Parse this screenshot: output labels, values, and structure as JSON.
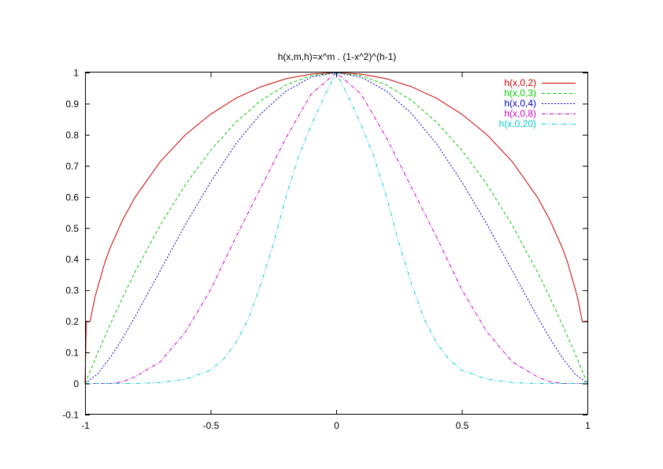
{
  "chart_data": {
    "type": "line",
    "title": "h(x,m,h)=x^m . (1-x^2)^(h-1)",
    "xlabel": "",
    "ylabel": "",
    "xlim": [
      -1,
      1
    ],
    "ylim": [
      -0.1,
      1
    ],
    "xticks": [
      -1,
      -0.5,
      0,
      0.5,
      1
    ],
    "xtick_labels": [
      "-1",
      "-0.5",
      "0",
      "0.5",
      "1"
    ],
    "yticks": [
      -0.1,
      0,
      0.1,
      0.2,
      0.3,
      0.4,
      0.5,
      0.6,
      0.7,
      0.8,
      0.9,
      1
    ],
    "ytick_labels": [
      "-0.1",
      "0",
      "0.1",
      "0.2",
      "0.3",
      "0.4",
      "0.5",
      "0.6",
      "0.7",
      "0.8",
      "0.9",
      "1"
    ],
    "grid": false,
    "legend_position": "top-right",
    "series": [
      {
        "name": "h(x,0,2)",
        "color": "#cc0000",
        "dash": "solid",
        "x": [
          -1,
          -0.995,
          -0.98,
          -0.96,
          -0.92,
          -0.9,
          -0.85,
          -0.8,
          -0.7,
          -0.6,
          -0.5,
          -0.4,
          -0.3,
          -0.2,
          -0.1,
          0,
          0.1,
          0.2,
          0.3,
          0.4,
          0.5,
          0.6,
          0.7,
          0.8,
          0.85,
          0.9,
          0.92,
          0.96,
          0.98,
          0.995,
          1
        ],
        "y": [
          0,
          0.2,
          0.199,
          0.28,
          0.392,
          0.436,
          0.527,
          0.6,
          0.714,
          0.8,
          0.866,
          0.917,
          0.954,
          0.98,
          0.995,
          1,
          0.995,
          0.98,
          0.954,
          0.917,
          0.866,
          0.8,
          0.714,
          0.6,
          0.527,
          0.436,
          0.392,
          0.28,
          0.199,
          0.2,
          0.2
        ]
      },
      {
        "name": "h(x,0,3)",
        "color": "#00cc00",
        "dash": "dashed",
        "x": [
          -1,
          -0.95,
          -0.9,
          -0.85,
          -0.8,
          -0.7,
          -0.6,
          -0.5,
          -0.4,
          -0.3,
          -0.2,
          -0.1,
          0,
          0.1,
          0.2,
          0.3,
          0.4,
          0.5,
          0.6,
          0.7,
          0.8,
          0.85,
          0.9,
          0.95,
          1
        ],
        "y": [
          0,
          0.098,
          0.19,
          0.278,
          0.36,
          0.51,
          0.64,
          0.75,
          0.84,
          0.91,
          0.96,
          0.99,
          1,
          0.99,
          0.96,
          0.91,
          0.84,
          0.75,
          0.64,
          0.51,
          0.36,
          0.278,
          0.19,
          0.098,
          0
        ]
      },
      {
        "name": "h(x,0,4)",
        "color": "#0000cc",
        "dash": "dotted",
        "x": [
          -1,
          -0.95,
          -0.9,
          -0.85,
          -0.8,
          -0.7,
          -0.6,
          -0.5,
          -0.4,
          -0.3,
          -0.2,
          -0.1,
          0,
          0.1,
          0.2,
          0.3,
          0.4,
          0.5,
          0.6,
          0.7,
          0.8,
          0.85,
          0.9,
          0.95,
          1
        ],
        "y": [
          0,
          0.031,
          0.083,
          0.146,
          0.216,
          0.364,
          0.512,
          0.648,
          0.77,
          0.868,
          0.94,
          0.985,
          1,
          0.985,
          0.94,
          0.868,
          0.77,
          0.648,
          0.512,
          0.364,
          0.216,
          0.146,
          0.083,
          0.031,
          0
        ]
      },
      {
        "name": "h(x,0,8)",
        "color": "#cc00cc",
        "dash": "dashdot",
        "x": [
          -1,
          -0.95,
          -0.9,
          -0.85,
          -0.8,
          -0.7,
          -0.6,
          -0.5,
          -0.4,
          -0.3,
          -0.2,
          -0.1,
          0,
          0.1,
          0.2,
          0.3,
          0.4,
          0.5,
          0.6,
          0.7,
          0.8,
          0.85,
          0.9,
          0.95,
          1
        ],
        "y": [
          0,
          0.0,
          0.0,
          0.006,
          0.022,
          0.07,
          0.166,
          0.302,
          0.47,
          0.63,
          0.79,
          0.93,
          1,
          0.93,
          0.79,
          0.63,
          0.47,
          0.302,
          0.166,
          0.07,
          0.022,
          0.006,
          0.0,
          0.0,
          0
        ]
      },
      {
        "name": "h(x,0,20)",
        "color": "#00cccc",
        "dash": "dashdotdot",
        "x": [
          -1,
          -0.9,
          -0.8,
          -0.7,
          -0.6,
          -0.5,
          -0.45,
          -0.4,
          -0.35,
          -0.3,
          -0.25,
          -0.2,
          -0.15,
          -0.1,
          -0.05,
          0,
          0.05,
          0.1,
          0.15,
          0.2,
          0.25,
          0.3,
          0.35,
          0.4,
          0.45,
          0.5,
          0.6,
          0.7,
          0.8,
          0.9,
          1
        ],
        "y": [
          0,
          0,
          0.0,
          0.003,
          0.014,
          0.043,
          0.077,
          0.13,
          0.208,
          0.32,
          0.45,
          0.6,
          0.73,
          0.83,
          0.92,
          1,
          0.92,
          0.83,
          0.73,
          0.6,
          0.45,
          0.32,
          0.208,
          0.13,
          0.077,
          0.043,
          0.014,
          0.003,
          0.0,
          0,
          0
        ]
      }
    ]
  }
}
